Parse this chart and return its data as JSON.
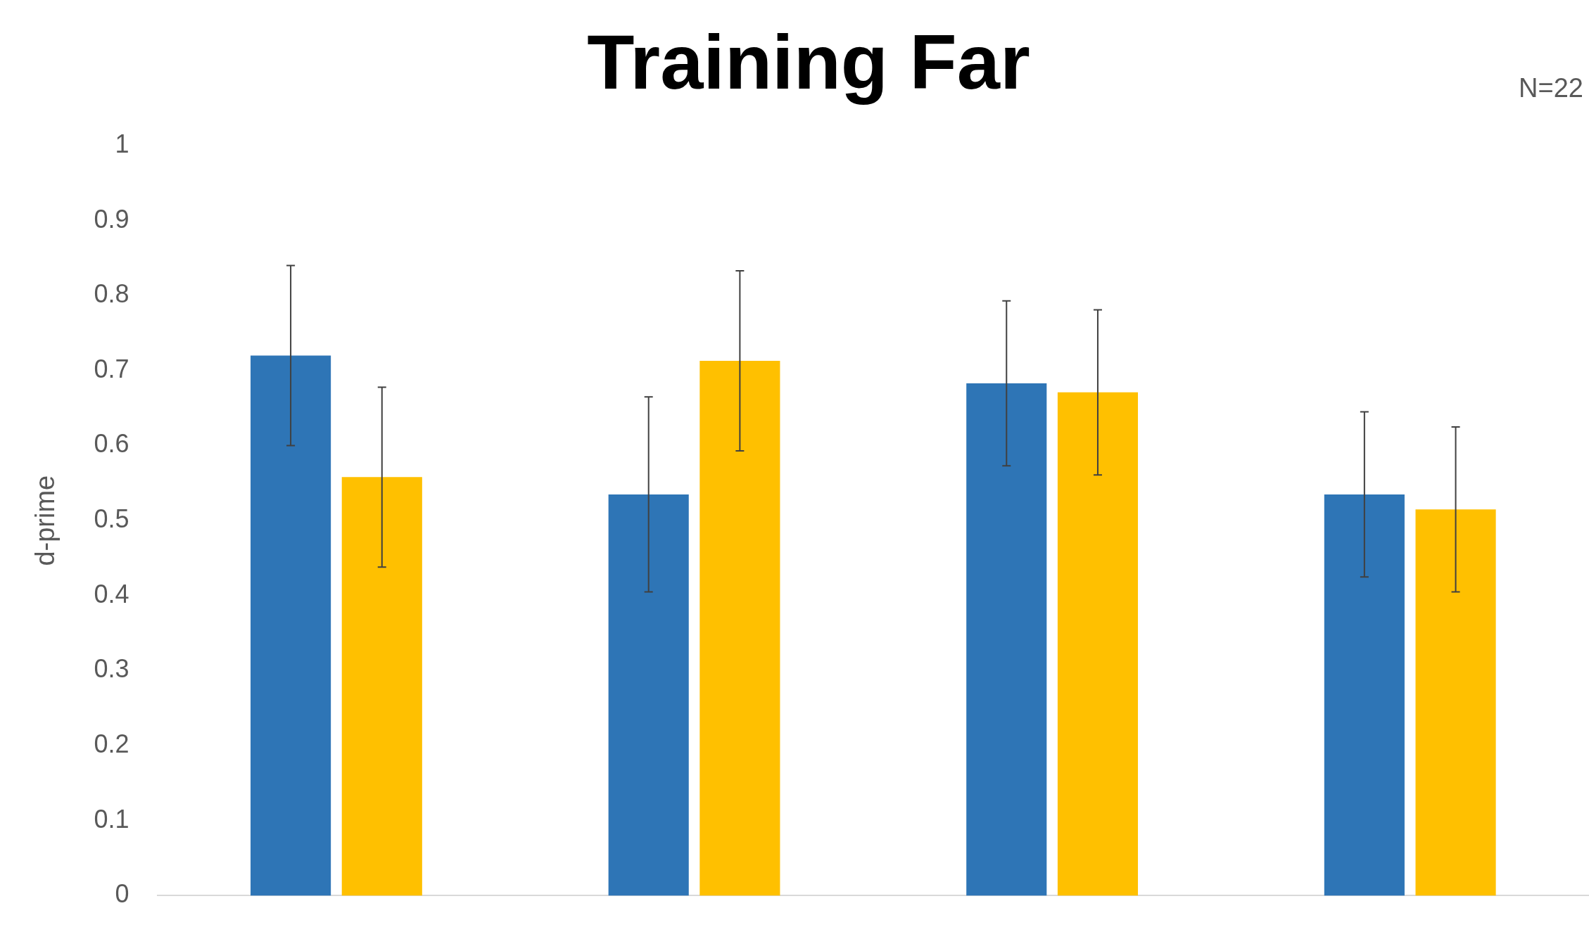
{
  "chart_data": {
    "type": "bar",
    "title": "Training Far",
    "ylabel": "d-prime",
    "annotations": [
      "N=22"
    ],
    "categories": [
      null,
      null,
      null,
      null
    ],
    "series": [
      {
        "color": "#2e75b6",
        "values": [
          0.72,
          0.535,
          0.683,
          0.535
        ],
        "errors": [
          0.12,
          0.13,
          0.11,
          0.11
        ]
      },
      {
        "color": "#ffc000",
        "values": [
          0.558,
          0.713,
          0.671,
          0.515
        ],
        "errors": [
          0.12,
          0.12,
          0.11,
          0.11
        ]
      }
    ],
    "ylim": [
      0,
      1
    ],
    "yticks": [
      0,
      0.1,
      0.2,
      0.3,
      0.4,
      0.5,
      0.6,
      0.7,
      0.8,
      0.9,
      1
    ],
    "grid": false,
    "legend": false
  }
}
